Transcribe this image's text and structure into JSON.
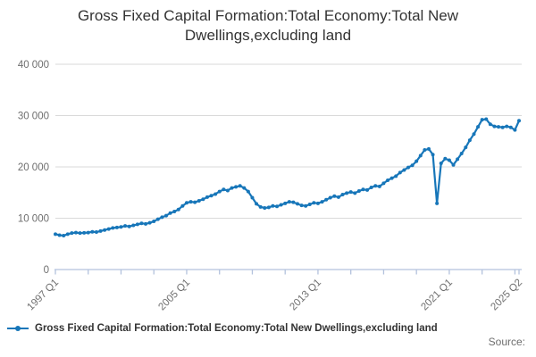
{
  "title": "Gross Fixed Capital Formation:Total Economy:Total New Dwellings,excluding land",
  "source_label": "Source:",
  "legend": {
    "marker_icon": "line-dot-marker",
    "label": "Gross Fixed Capital Formation:Total Economy:Total New Dwellings,excluding land"
  },
  "colors": {
    "series": "#1776b9",
    "grid": "#d9d9d9",
    "axis": "#b3c2dd",
    "tick_label": "#6e6e6e",
    "title_text": "#333333"
  },
  "chart_data": {
    "type": "line",
    "title": "Gross Fixed Capital Formation:Total Economy:Total New Dwellings,excluding land",
    "x_start": "1997 Q1",
    "x_end": "2025 Q2",
    "frequency": "quarterly",
    "ylim": [
      0,
      40000
    ],
    "grid": "horizontal",
    "legend_position": "bottom-left",
    "y_ticks": [
      {
        "value": 0,
        "label": "0"
      },
      {
        "value": 10000,
        "label": "10 000"
      },
      {
        "value": 20000,
        "label": "20 000"
      },
      {
        "value": 30000,
        "label": "30 000"
      },
      {
        "value": 40000,
        "label": "40 000"
      }
    ],
    "x_minor_tick_every": 8,
    "x_labeled_ticks": [
      {
        "index": 0,
        "label": "1997 Q1"
      },
      {
        "index": 32,
        "label": "2005 Q1"
      },
      {
        "index": 64,
        "label": "2013 Q1"
      },
      {
        "index": 96,
        "label": "2021 Q1"
      },
      {
        "index": 113,
        "label": "2025 Q2"
      }
    ],
    "series": [
      {
        "name": "Gross Fixed Capital Formation:Total Economy:Total New Dwellings,excluding land",
        "values": [
          6900,
          6700,
          6600,
          6900,
          7100,
          7200,
          7100,
          7150,
          7200,
          7350,
          7300,
          7500,
          7700,
          7900,
          8100,
          8200,
          8300,
          8500,
          8400,
          8600,
          8800,
          9000,
          8900,
          9100,
          9400,
          9800,
          10200,
          10500,
          11000,
          11300,
          11700,
          12400,
          13000,
          13200,
          13100,
          13400,
          13700,
          14100,
          14400,
          14700,
          15200,
          15600,
          15400,
          15900,
          16100,
          16300,
          15900,
          15200,
          14000,
          12800,
          12200,
          12000,
          12100,
          12400,
          12300,
          12600,
          12900,
          13200,
          13100,
          12800,
          12500,
          12400,
          12700,
          13000,
          12900,
          13200,
          13600,
          14000,
          14300,
          14100,
          14600,
          14900,
          15100,
          14900,
          15300,
          15600,
          15500,
          16000,
          16300,
          16200,
          16800,
          17400,
          17800,
          18200,
          18900,
          19400,
          19900,
          20300,
          21100,
          22200,
          23300,
          23500,
          22400,
          12900,
          20700,
          21600,
          21300,
          20400,
          21500,
          22600,
          23800,
          25200,
          26400,
          27800,
          29200,
          29300,
          28300,
          27900,
          27800,
          27700,
          27900,
          27700,
          27200,
          29000
        ]
      }
    ]
  }
}
